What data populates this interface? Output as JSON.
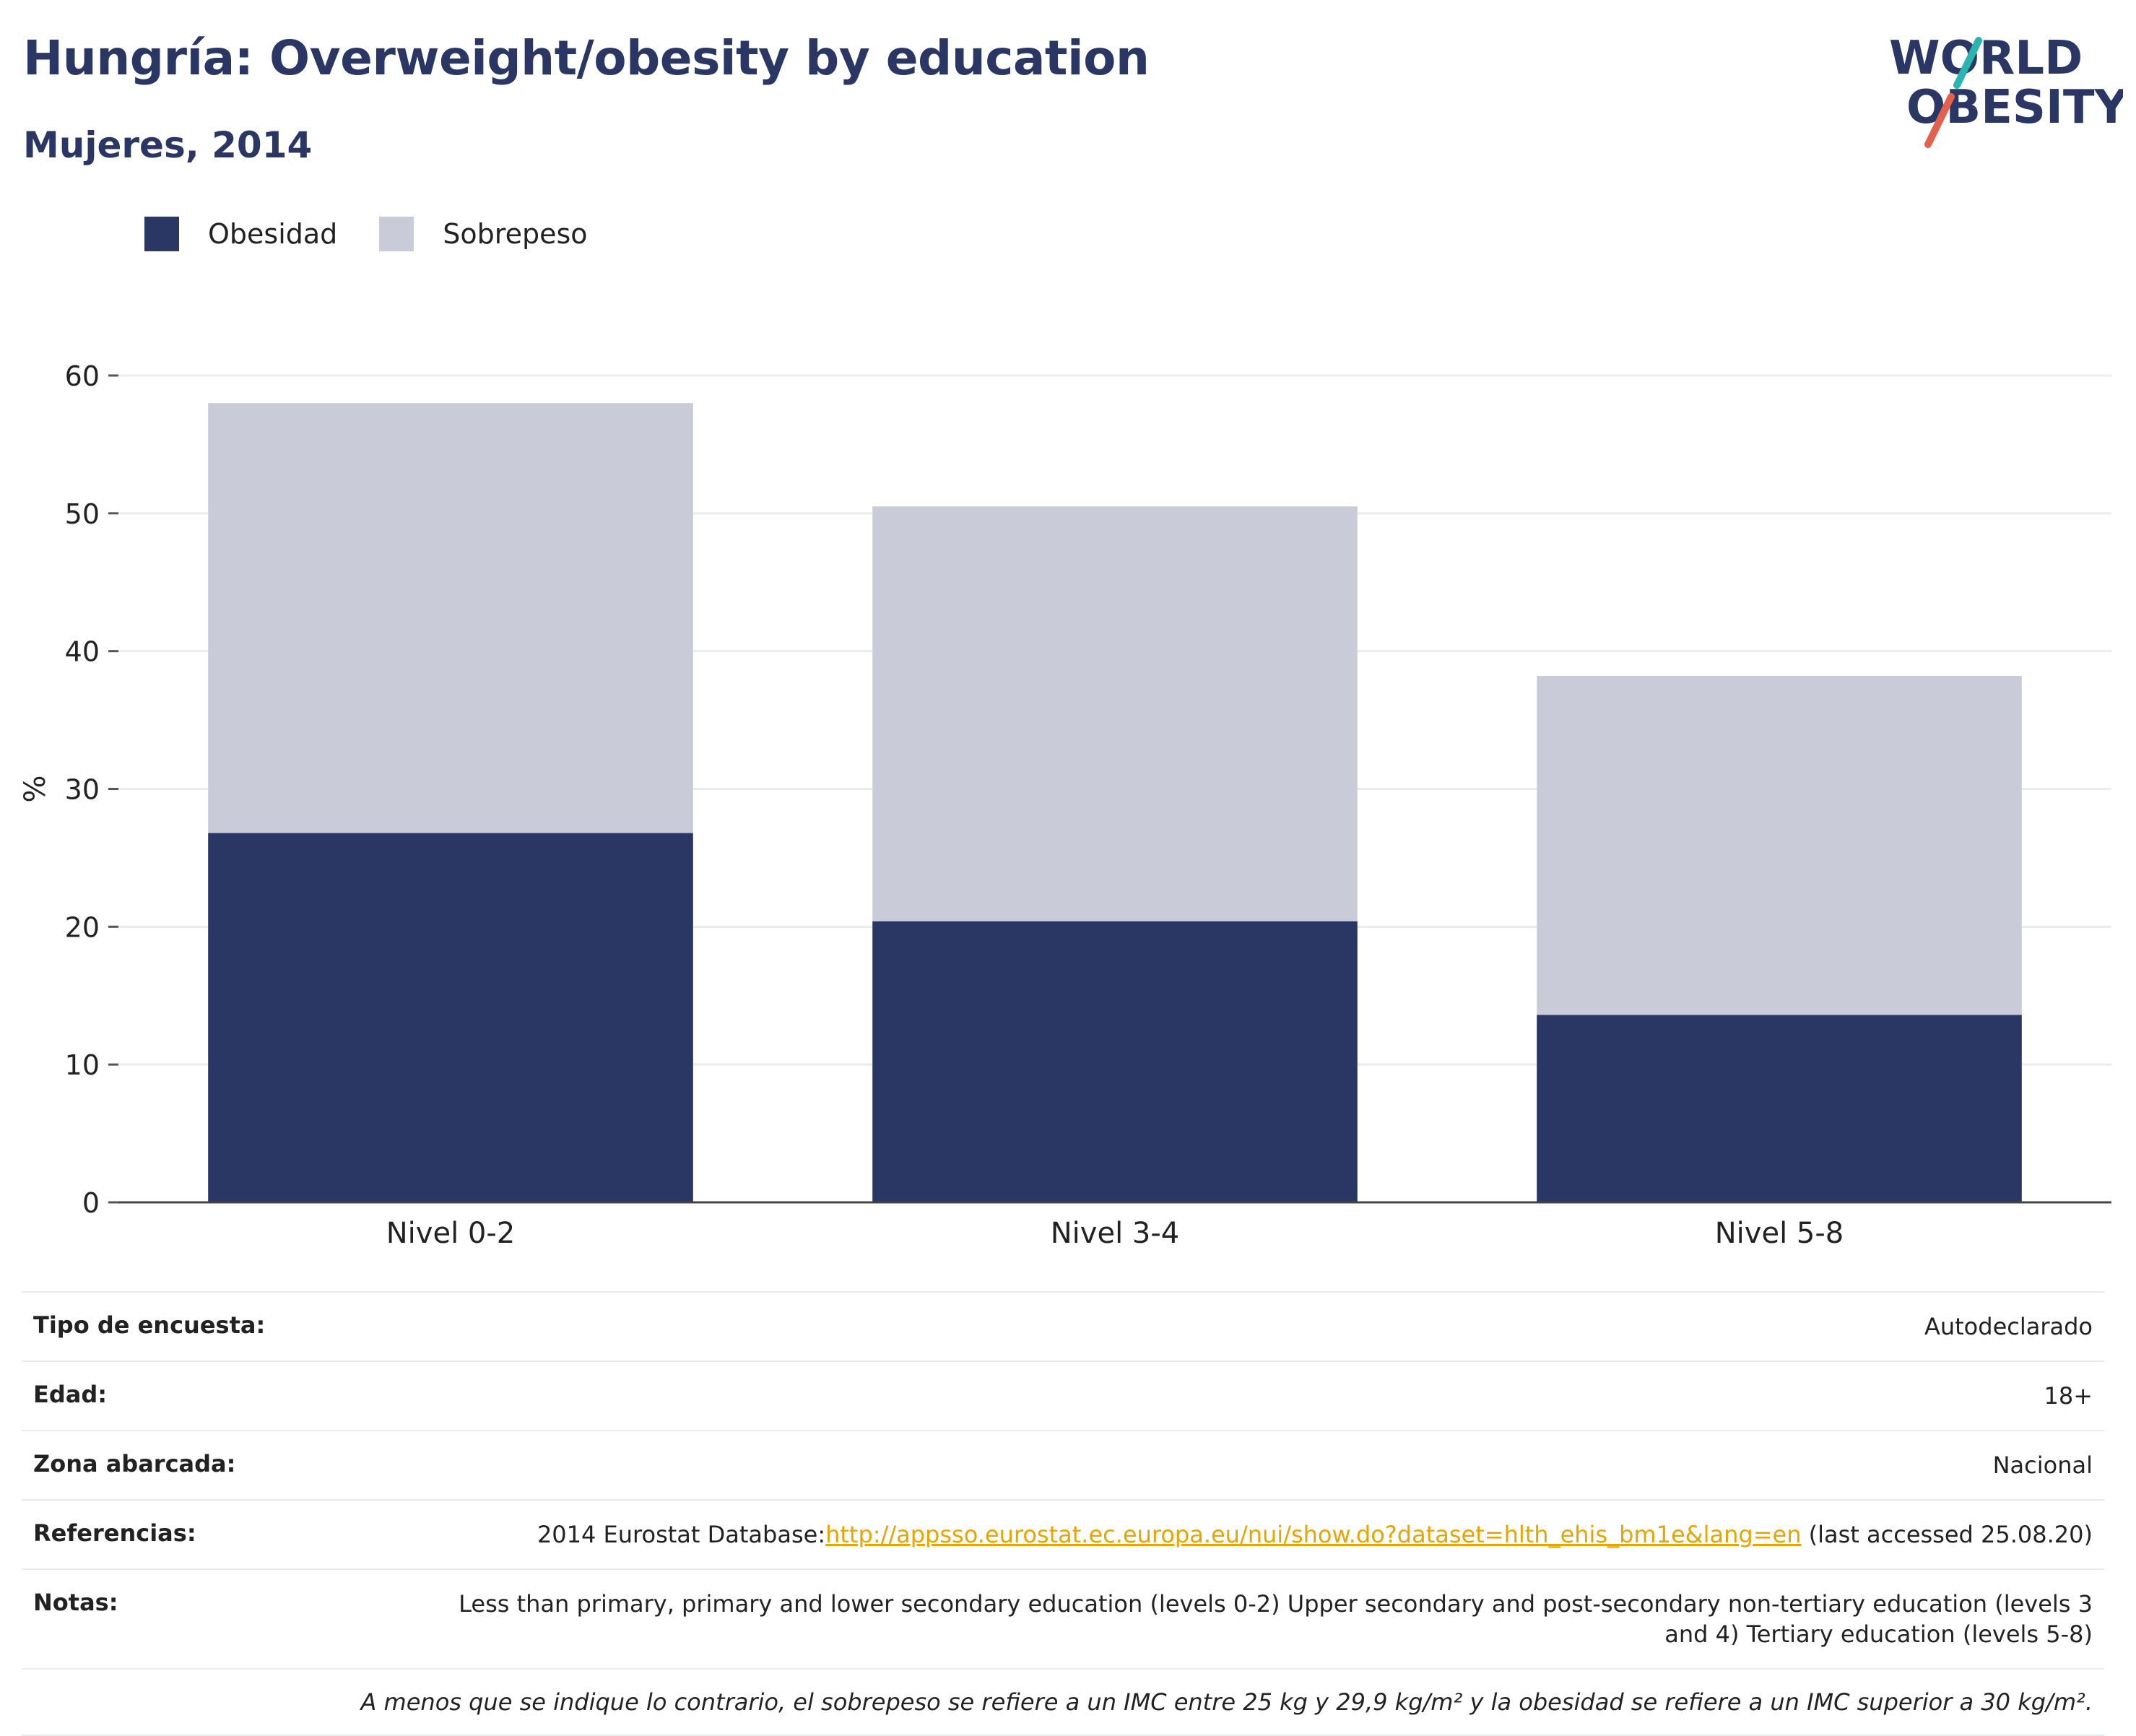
{
  "title": "Hungría: Overweight/obesity by education",
  "subtitle": "Mujeres, 2014",
  "logo": {
    "line1": "WORLD",
    "line2": "OBESITY"
  },
  "legend": [
    {
      "label": "Obesidad",
      "color": "#2a3764"
    },
    {
      "label": "Sobrepeso",
      "color": "#c9ccd8"
    }
  ],
  "chart_data": {
    "type": "bar",
    "stacked": true,
    "categories": [
      "Nivel 0-2",
      "Nivel 3-4",
      "Nivel 5-8"
    ],
    "series": [
      {
        "name": "Obesidad",
        "values": [
          26.8,
          20.4,
          13.6
        ],
        "color": "#2a3764"
      },
      {
        "name": "Sobrepeso",
        "values": [
          31.2,
          30.1,
          24.6
        ],
        "color": "#c9ccd8"
      }
    ],
    "ylabel": "%",
    "ylim": [
      0,
      60
    ],
    "yticks": [
      0,
      10,
      20,
      30,
      40,
      50,
      60
    ],
    "grid": true,
    "legend_position": "top-left"
  },
  "info": {
    "survey_type": {
      "label": "Tipo de encuesta:",
      "value": "Autodeclarado"
    },
    "age": {
      "label": "Edad:",
      "value": "18+"
    },
    "area": {
      "label": "Zona abarcada:",
      "value": "Nacional"
    },
    "references": {
      "label": "Referencias:",
      "prefix": "2014 Eurostat Database:",
      "link": "http://appsso.eurostat.ec.europa.eu/nui/show.do?dataset=hlth_ehis_bm1e&lang=en",
      "suffix": " (last accessed 25.08.20)"
    },
    "notes": {
      "label": "Notas:",
      "value": "Less than primary, primary and lower secondary education (levels 0-2) Upper secondary and post-secondary non-tertiary education (levels 3 and 4) Tertiary education (levels 5-8)"
    },
    "footnote": "A menos que se indique lo contrario, el sobrepeso se refiere a un IMC entre 25 kg y 29,9 kg/m² y la obesidad se refiere a un IMC superior a 30 kg/m²."
  }
}
